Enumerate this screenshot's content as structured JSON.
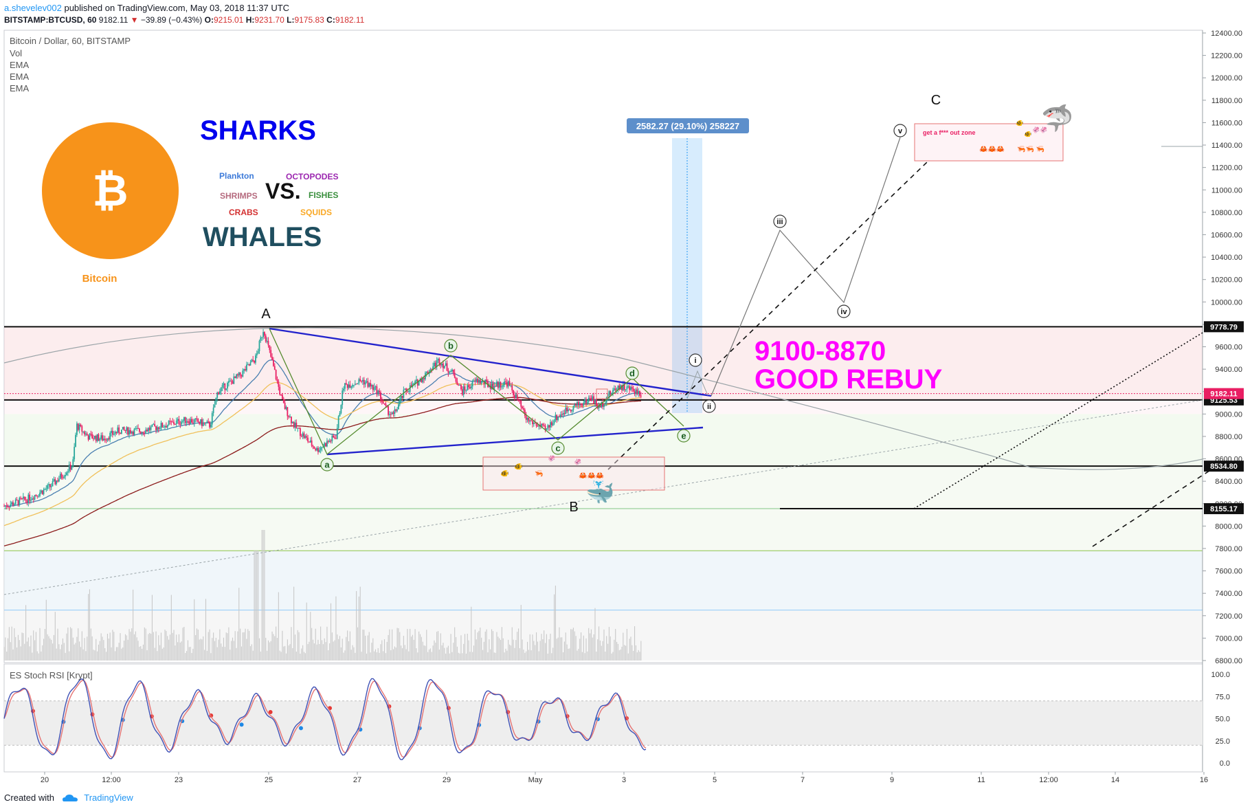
{
  "header": {
    "user": "a.shevelev002",
    "published": "published on TradingView.com, May 03, 2018 11:37 UTC",
    "symbol": "BITSTAMP:BTCUSD, 60",
    "last": "9182.11",
    "change": "−39.89 (−0.43%)",
    "ohlc": {
      "o_label": "O:",
      "o": "9215.01",
      "h_label": "H:",
      "h": "9231.70",
      "l_label": "L:",
      "l": "9175.83",
      "c_label": "C:",
      "c": "9182.11"
    }
  },
  "legend": {
    "title": "Bitcoin / Dollar, 60, BITSTAMP",
    "items": [
      "Vol",
      "EMA",
      "EMA",
      "EMA"
    ]
  },
  "annotations": {
    "logo_label": "Bitcoin",
    "logo_glyph": "₿",
    "sharks": "SHARKS",
    "vs": "VS.",
    "whales": "WHALES",
    "left_group": [
      "Plankton",
      "SHRIMPS",
      "CRABS"
    ],
    "right_group": [
      "OCTOPODES",
      "FISHES",
      "SQUIDS"
    ],
    "rebuy_line1": "9100-8870",
    "rebuy_line2": "GOOD REBUY",
    "zone": "get a f*** out zone",
    "measure": "2582.27 (29.10%) 258227",
    "wave_labels": [
      "A",
      "B",
      "C"
    ],
    "green_waves": [
      "a",
      "b",
      "c",
      "d",
      "e"
    ],
    "roman_waves": [
      "i",
      "ii",
      "iii",
      "iv",
      "v"
    ]
  },
  "indicator": {
    "title": "ES Stoch RSI [Krypt]"
  },
  "footer": {
    "created": "Created with",
    "brand": "TradingView"
  },
  "colors": {
    "accent": "#2196f3",
    "up": "#26a69a",
    "down": "#e91e63",
    "sharks": "#0000ee",
    "whales": "#1f4e5f",
    "rebuy": "#ff00ff",
    "bitcoin": "#f7931a"
  },
  "chart_data": {
    "type": "candlestick",
    "price_axis": {
      "range": [
        6800,
        12400
      ],
      "ticks": [
        6800,
        7000,
        7200,
        7400,
        7600,
        7800,
        8000,
        8200,
        8400,
        8600,
        8800,
        9000,
        9200,
        9400,
        9600,
        9800,
        10000,
        10200,
        10400,
        10600,
        10800,
        11000,
        11200,
        11400,
        11600,
        11800,
        12000,
        12200,
        12400
      ],
      "tick_labels": [
        "6800.00",
        "7000.00",
        "7200.00",
        "7400.00",
        "7600.00",
        "7800.00",
        "8000.00",
        "8200.00",
        "8400.00",
        "8600.00",
        "8800.00",
        "9000.00",
        "9200.00",
        "9400.00",
        "9600.00",
        "9800.00",
        "10000.00",
        "10200.00",
        "10400.00",
        "10600.00",
        "10800.00",
        "11000.00",
        "11200.00",
        "11400.00",
        "11600.00",
        "11800.00",
        "12000.00",
        "12200.00",
        "12400.00"
      ]
    },
    "time_axis": {
      "labels": [
        "20",
        "12:00",
        "23",
        "25",
        "27",
        "29",
        "May",
        "3",
        "5",
        "7",
        "9",
        "11",
        "12:00",
        "14",
        "16"
      ]
    },
    "price_levels": [
      {
        "value": 9778.79,
        "label": "9778.79",
        "kind": "horizontal"
      },
      {
        "value": 9125.53,
        "label": "9125.53",
        "kind": "horizontal"
      },
      {
        "value": 8534.8,
        "label": "8534.80",
        "kind": "horizontal"
      },
      {
        "value": 8155.17,
        "label": "8155.17",
        "kind": "horizontal"
      },
      {
        "value": 9182.11,
        "label": "9182.11",
        "kind": "last-price"
      }
    ],
    "path_points": [
      {
        "t": 0,
        "p": 8180
      },
      {
        "t": 3,
        "p": 8240
      },
      {
        "t": 6,
        "p": 8350
      },
      {
        "t": 8,
        "p": 8480
      },
      {
        "t": 9,
        "p": 8550
      },
      {
        "t": 9.5,
        "p": 8900
      },
      {
        "t": 11,
        "p": 8800
      },
      {
        "t": 13,
        "p": 8780
      },
      {
        "t": 15,
        "p": 8850
      },
      {
        "t": 18,
        "p": 8850
      },
      {
        "t": 21,
        "p": 8900
      },
      {
        "t": 24,
        "p": 8950
      },
      {
        "t": 27,
        "p": 8900
      },
      {
        "t": 28,
        "p": 9200
      },
      {
        "t": 31,
        "p": 9350
      },
      {
        "t": 33,
        "p": 9500
      },
      {
        "t": 34,
        "p": 9760
      },
      {
        "t": 35,
        "p": 9500
      },
      {
        "t": 36.5,
        "p": 9100
      },
      {
        "t": 38,
        "p": 8900
      },
      {
        "t": 40,
        "p": 8750
      },
      {
        "t": 41,
        "p": 8680
      },
      {
        "t": 43.5,
        "p": 8800
      },
      {
        "t": 44.5,
        "p": 9250
      },
      {
        "t": 47,
        "p": 9300
      },
      {
        "t": 49,
        "p": 9200
      },
      {
        "t": 50,
        "p": 9050
      },
      {
        "t": 51,
        "p": 8980
      },
      {
        "t": 52.5,
        "p": 9200
      },
      {
        "t": 54.5,
        "p": 9300
      },
      {
        "t": 57,
        "p": 9480
      },
      {
        "t": 59,
        "p": 9350
      },
      {
        "t": 60,
        "p": 9200
      },
      {
        "t": 62,
        "p": 9300
      },
      {
        "t": 64,
        "p": 9250
      },
      {
        "t": 66,
        "p": 9280
      },
      {
        "t": 67.5,
        "p": 9100
      },
      {
        "t": 68.5,
        "p": 8950
      },
      {
        "t": 70,
        "p": 8900
      },
      {
        "t": 71,
        "p": 8850
      },
      {
        "t": 72,
        "p": 8950
      },
      {
        "t": 74,
        "p": 9050
      },
      {
        "t": 76,
        "p": 9100
      },
      {
        "t": 77,
        "p": 9150
      },
      {
        "t": 78,
        "p": 9050
      },
      {
        "t": 79,
        "p": 9150
      },
      {
        "t": 80.5,
        "p": 9250
      },
      {
        "t": 82.5,
        "p": 9215
      },
      {
        "t": 83.5,
        "p": 9182
      }
    ]
  }
}
